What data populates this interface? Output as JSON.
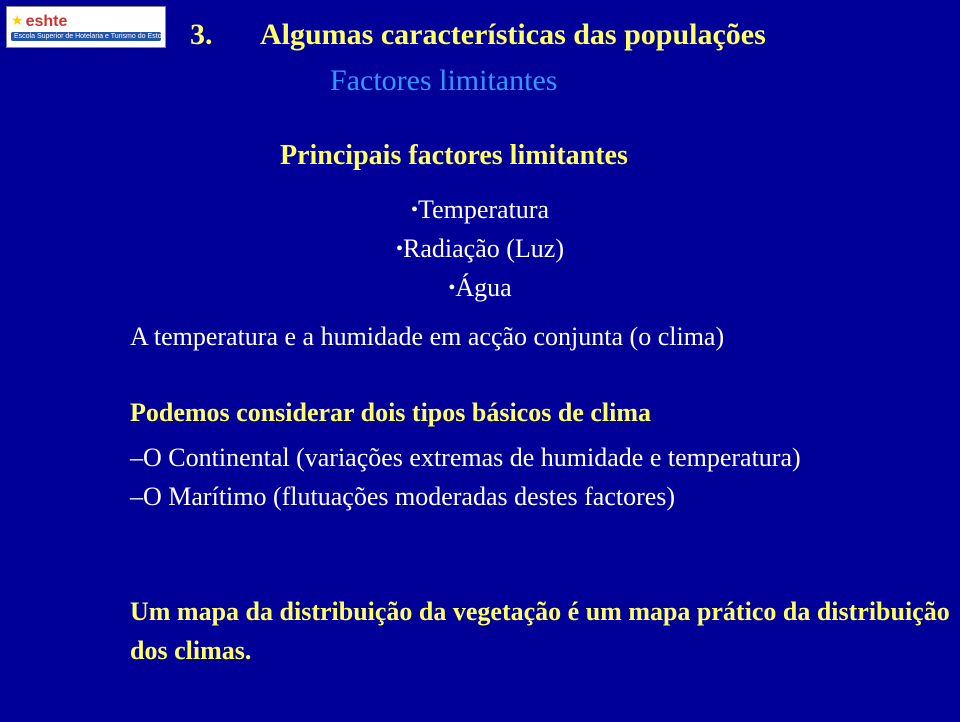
{
  "logo": {
    "main": "eshte",
    "tagline": "Escola Superior de Hotelaria e Turismo do Estoril"
  },
  "slide_number": "3.",
  "title": "Algumas características das populações",
  "subtitle": "Factores limitantes",
  "section1": {
    "heading": "Principais factores limitantes",
    "items": [
      "Temperatura",
      "Radiação (Luz)",
      "Água"
    ]
  },
  "section2": {
    "heading": "A temperatura e a humidade em acção conjunta (o clima)"
  },
  "section3": {
    "heading": "Podemos considerar dois tipos básicos de clima",
    "items": [
      "O Continental (variações extremas de humidade e temperatura)",
      "O Marítimo (flutuações moderadas destes factores)"
    ]
  },
  "footer": "Um mapa da distribuição da vegetação é um mapa prático da distribuição dos climas.",
  "colors": {
    "background": "#000099",
    "title_color": "#ffff66",
    "subtitle_color": "#3399ff",
    "body_color": "#ffffff",
    "highlight_color": "#ffff66"
  }
}
